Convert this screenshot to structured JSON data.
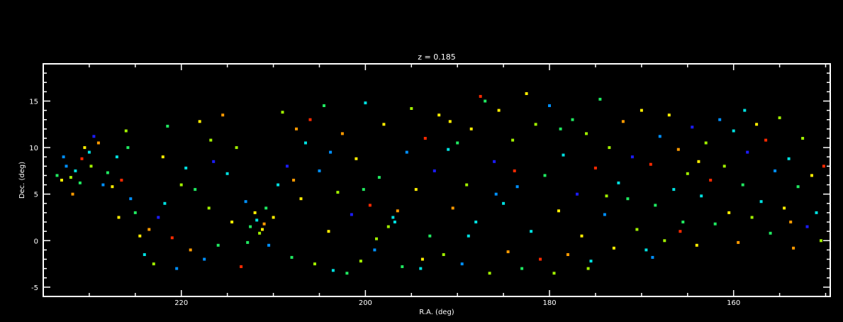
{
  "chart_data": {
    "type": "scatter",
    "title": "z = 0.185",
    "xlabel": "R.A. (deg)",
    "ylabel": "Dec. (deg)",
    "xlim": [
      235,
      149.5
    ],
    "ylim": [
      -6,
      19
    ],
    "x_ticks": [
      220,
      200,
      180,
      160
    ],
    "y_ticks": [
      -5,
      0,
      5,
      10,
      15
    ],
    "grid": false,
    "legend": "none",
    "background": "#000000",
    "foreground": "#ffffff",
    "marker": "square",
    "palette": [
      "#5000a0",
      "#1c1cff",
      "#0090ff",
      "#00e0e0",
      "#20e860",
      "#a0f000",
      "#ffee00",
      "#ff9a00",
      "#ff2a00"
    ],
    "points": [
      [
        233.5,
        7.0,
        4
      ],
      [
        233.0,
        6.5,
        6
      ],
      [
        232.5,
        8.0,
        2
      ],
      [
        232.0,
        6.8,
        5
      ],
      [
        231.8,
        5.0,
        7
      ],
      [
        231.5,
        7.5,
        3
      ],
      [
        231.0,
        6.2,
        4
      ],
      [
        230.8,
        8.8,
        8
      ],
      [
        230.5,
        10.0,
        6
      ],
      [
        230.0,
        9.5,
        3
      ],
      [
        229.8,
        8.0,
        5
      ],
      [
        229.5,
        11.2,
        1
      ],
      [
        229.0,
        10.5,
        7
      ],
      [
        228.5,
        6.0,
        2
      ],
      [
        228.0,
        7.3,
        4
      ],
      [
        227.5,
        5.8,
        6
      ],
      [
        227.0,
        9.0,
        3
      ],
      [
        226.5,
        6.5,
        8
      ],
      [
        226.0,
        11.8,
        5
      ],
      [
        225.5,
        4.5,
        2
      ],
      [
        225.0,
        3.0,
        4
      ],
      [
        224.5,
        0.5,
        6
      ],
      [
        224.0,
        -1.5,
        3
      ],
      [
        223.5,
        1.2,
        7
      ],
      [
        223.0,
        -2.5,
        5
      ],
      [
        222.5,
        2.5,
        1
      ],
      [
        222.0,
        9.0,
        6
      ],
      [
        221.5,
        12.3,
        4
      ],
      [
        221.0,
        0.3,
        8
      ],
      [
        220.5,
        -3.0,
        2
      ],
      [
        220.0,
        6.0,
        5
      ],
      [
        219.5,
        7.8,
        3
      ],
      [
        219.0,
        -1.0,
        7
      ],
      [
        218.5,
        5.5,
        4
      ],
      [
        218.0,
        12.8,
        6
      ],
      [
        217.5,
        -2.0,
        2
      ],
      [
        217.0,
        3.5,
        5
      ],
      [
        216.5,
        8.5,
        1
      ],
      [
        216.0,
        -0.5,
        4
      ],
      [
        215.5,
        13.5,
        7
      ],
      [
        215.0,
        7.2,
        3
      ],
      [
        214.5,
        2.0,
        6
      ],
      [
        214.0,
        10.0,
        5
      ],
      [
        213.5,
        -2.8,
        8
      ],
      [
        213.0,
        4.2,
        2
      ],
      [
        212.5,
        1.5,
        4
      ],
      [
        212.0,
        3.0,
        6
      ],
      [
        211.8,
        2.2,
        3
      ],
      [
        211.5,
        0.8,
        5
      ],
      [
        211.0,
        1.8,
        7
      ],
      [
        210.8,
        3.5,
        4
      ],
      [
        210.5,
        -0.5,
        2
      ],
      [
        210.0,
        2.5,
        6
      ],
      [
        209.5,
        6.0,
        3
      ],
      [
        209.0,
        13.8,
        5
      ],
      [
        208.5,
        8.0,
        1
      ],
      [
        208.0,
        -1.8,
        4
      ],
      [
        207.5,
        12.0,
        7
      ],
      [
        207.0,
        4.5,
        6
      ],
      [
        206.5,
        10.5,
        3
      ],
      [
        206.0,
        13.0,
        8
      ],
      [
        205.5,
        -2.5,
        5
      ],
      [
        205.0,
        7.5,
        2
      ],
      [
        204.5,
        14.5,
        4
      ],
      [
        204.0,
        1.0,
        6
      ],
      [
        203.5,
        -3.2,
        3
      ],
      [
        203.0,
        5.2,
        5
      ],
      [
        202.5,
        11.5,
        7
      ],
      [
        202.0,
        -3.5,
        4
      ],
      [
        201.5,
        2.8,
        1
      ],
      [
        201.0,
        8.8,
        6
      ],
      [
        200.5,
        -2.2,
        5
      ],
      [
        200.0,
        14.8,
        3
      ],
      [
        199.5,
        3.8,
        8
      ],
      [
        199.0,
        -1.0,
        2
      ],
      [
        198.5,
        6.8,
        4
      ],
      [
        198.0,
        12.5,
        6
      ],
      [
        197.5,
        1.5,
        5
      ],
      [
        197.0,
        2.5,
        3
      ],
      [
        196.5,
        3.2,
        7
      ],
      [
        196.0,
        -2.8,
        4
      ],
      [
        195.5,
        9.5,
        2
      ],
      [
        195.0,
        14.2,
        5
      ],
      [
        194.5,
        5.5,
        6
      ],
      [
        194.0,
        -3.0,
        3
      ],
      [
        193.5,
        11.0,
        8
      ],
      [
        193.0,
        0.5,
        4
      ],
      [
        192.5,
        7.5,
        1
      ],
      [
        192.0,
        13.5,
        6
      ],
      [
        191.5,
        -1.5,
        5
      ],
      [
        191.0,
        9.8,
        3
      ],
      [
        190.5,
        3.5,
        7
      ],
      [
        190.0,
        10.5,
        4
      ],
      [
        189.5,
        -2.5,
        2
      ],
      [
        189.0,
        6.0,
        5
      ],
      [
        188.5,
        12.0,
        6
      ],
      [
        188.0,
        2.0,
        3
      ],
      [
        187.5,
        15.5,
        8
      ],
      [
        187.0,
        15.0,
        4
      ],
      [
        186.5,
        -3.5,
        5
      ],
      [
        186.0,
        8.5,
        1
      ],
      [
        185.5,
        14.0,
        6
      ],
      [
        185.0,
        4.0,
        3
      ],
      [
        184.5,
        -1.2,
        7
      ],
      [
        184.0,
        10.8,
        5
      ],
      [
        183.5,
        5.8,
        2
      ],
      [
        183.0,
        -3.0,
        4
      ],
      [
        182.5,
        15.8,
        6
      ],
      [
        182.0,
        1.0,
        3
      ],
      [
        181.5,
        12.5,
        5
      ],
      [
        181.0,
        -2.0,
        8
      ],
      [
        180.5,
        7.0,
        4
      ],
      [
        180.0,
        14.5,
        2
      ],
      [
        179.5,
        -3.5,
        5
      ],
      [
        179.0,
        3.2,
        6
      ],
      [
        178.5,
        9.2,
        3
      ],
      [
        178.0,
        -1.5,
        7
      ],
      [
        177.5,
        13.0,
        4
      ],
      [
        177.0,
        5.0,
        1
      ],
      [
        176.5,
        0.5,
        6
      ],
      [
        176.0,
        11.5,
        5
      ],
      [
        175.5,
        -2.2,
        3
      ],
      [
        175.0,
        7.8,
        8
      ],
      [
        174.5,
        15.2,
        4
      ],
      [
        174.0,
        2.8,
        2
      ],
      [
        173.5,
        10.0,
        5
      ],
      [
        173.0,
        -0.8,
        6
      ],
      [
        172.5,
        6.2,
        3
      ],
      [
        172.0,
        12.8,
        7
      ],
      [
        171.5,
        4.5,
        4
      ],
      [
        171.0,
        9.0,
        1
      ],
      [
        170.5,
        1.2,
        5
      ],
      [
        170.0,
        14.0,
        6
      ],
      [
        169.5,
        -1.0,
        3
      ],
      [
        169.0,
        8.2,
        8
      ],
      [
        168.5,
        3.8,
        4
      ],
      [
        168.0,
        11.2,
        2
      ],
      [
        167.5,
        0.0,
        5
      ],
      [
        167.0,
        13.5,
        6
      ],
      [
        166.5,
        5.5,
        3
      ],
      [
        166.0,
        9.8,
        7
      ],
      [
        165.5,
        2.0,
        4
      ],
      [
        165.0,
        7.2,
        5
      ],
      [
        164.5,
        12.2,
        1
      ],
      [
        164.0,
        -0.5,
        6
      ],
      [
        163.5,
        4.8,
        3
      ],
      [
        163.0,
        10.5,
        5
      ],
      [
        162.5,
        6.5,
        8
      ],
      [
        162.0,
        1.8,
        4
      ],
      [
        161.5,
        13.0,
        2
      ],
      [
        161.0,
        8.0,
        5
      ],
      [
        160.5,
        3.0,
        6
      ],
      [
        160.0,
        11.8,
        3
      ],
      [
        159.5,
        -0.2,
        7
      ],
      [
        159.0,
        6.0,
        4
      ],
      [
        158.5,
        9.5,
        1
      ],
      [
        158.0,
        2.5,
        5
      ],
      [
        157.5,
        12.5,
        6
      ],
      [
        157.0,
        4.2,
        3
      ],
      [
        156.5,
        10.8,
        8
      ],
      [
        156.0,
        0.8,
        4
      ],
      [
        155.5,
        7.5,
        2
      ],
      [
        155.0,
        13.2,
        5
      ],
      [
        154.5,
        3.5,
        6
      ],
      [
        154.0,
        8.8,
        3
      ],
      [
        153.5,
        -0.8,
        7
      ],
      [
        153.0,
        5.8,
        4
      ],
      [
        152.5,
        11.0,
        5
      ],
      [
        152.0,
        1.5,
        1
      ],
      [
        151.5,
        7.0,
        6
      ],
      [
        151.0,
        3.0,
        3
      ],
      [
        150.5,
        0.0,
        5
      ],
      [
        150.2,
        8.0,
        8
      ],
      [
        232.8,
        9.0,
        2
      ],
      [
        226.8,
        2.5,
        6
      ],
      [
        221.8,
        4.0,
        3
      ],
      [
        216.8,
        10.8,
        5
      ],
      [
        212.8,
        -0.2,
        4
      ],
      [
        207.8,
        6.5,
        7
      ],
      [
        203.8,
        9.5,
        2
      ],
      [
        198.8,
        0.2,
        5
      ],
      [
        193.8,
        -2.0,
        6
      ],
      [
        188.8,
        0.5,
        3
      ],
      [
        183.8,
        7.5,
        8
      ],
      [
        178.8,
        12.0,
        4
      ],
      [
        173.8,
        4.8,
        5
      ],
      [
        168.8,
        -1.8,
        2
      ],
      [
        163.8,
        8.5,
        6
      ],
      [
        158.8,
        14.0,
        3
      ],
      [
        153.8,
        2.0,
        7
      ],
      [
        200.2,
        5.5,
        4
      ],
      [
        211.2,
        1.2,
        6
      ],
      [
        196.8,
        2.0,
        3
      ],
      [
        175.8,
        -3.0,
        5
      ],
      [
        165.8,
        1.0,
        8
      ],
      [
        185.8,
        5.0,
        2
      ],
      [
        225.8,
        10.0,
        4
      ],
      [
        190.8,
        12.8,
        6
      ]
    ]
  }
}
